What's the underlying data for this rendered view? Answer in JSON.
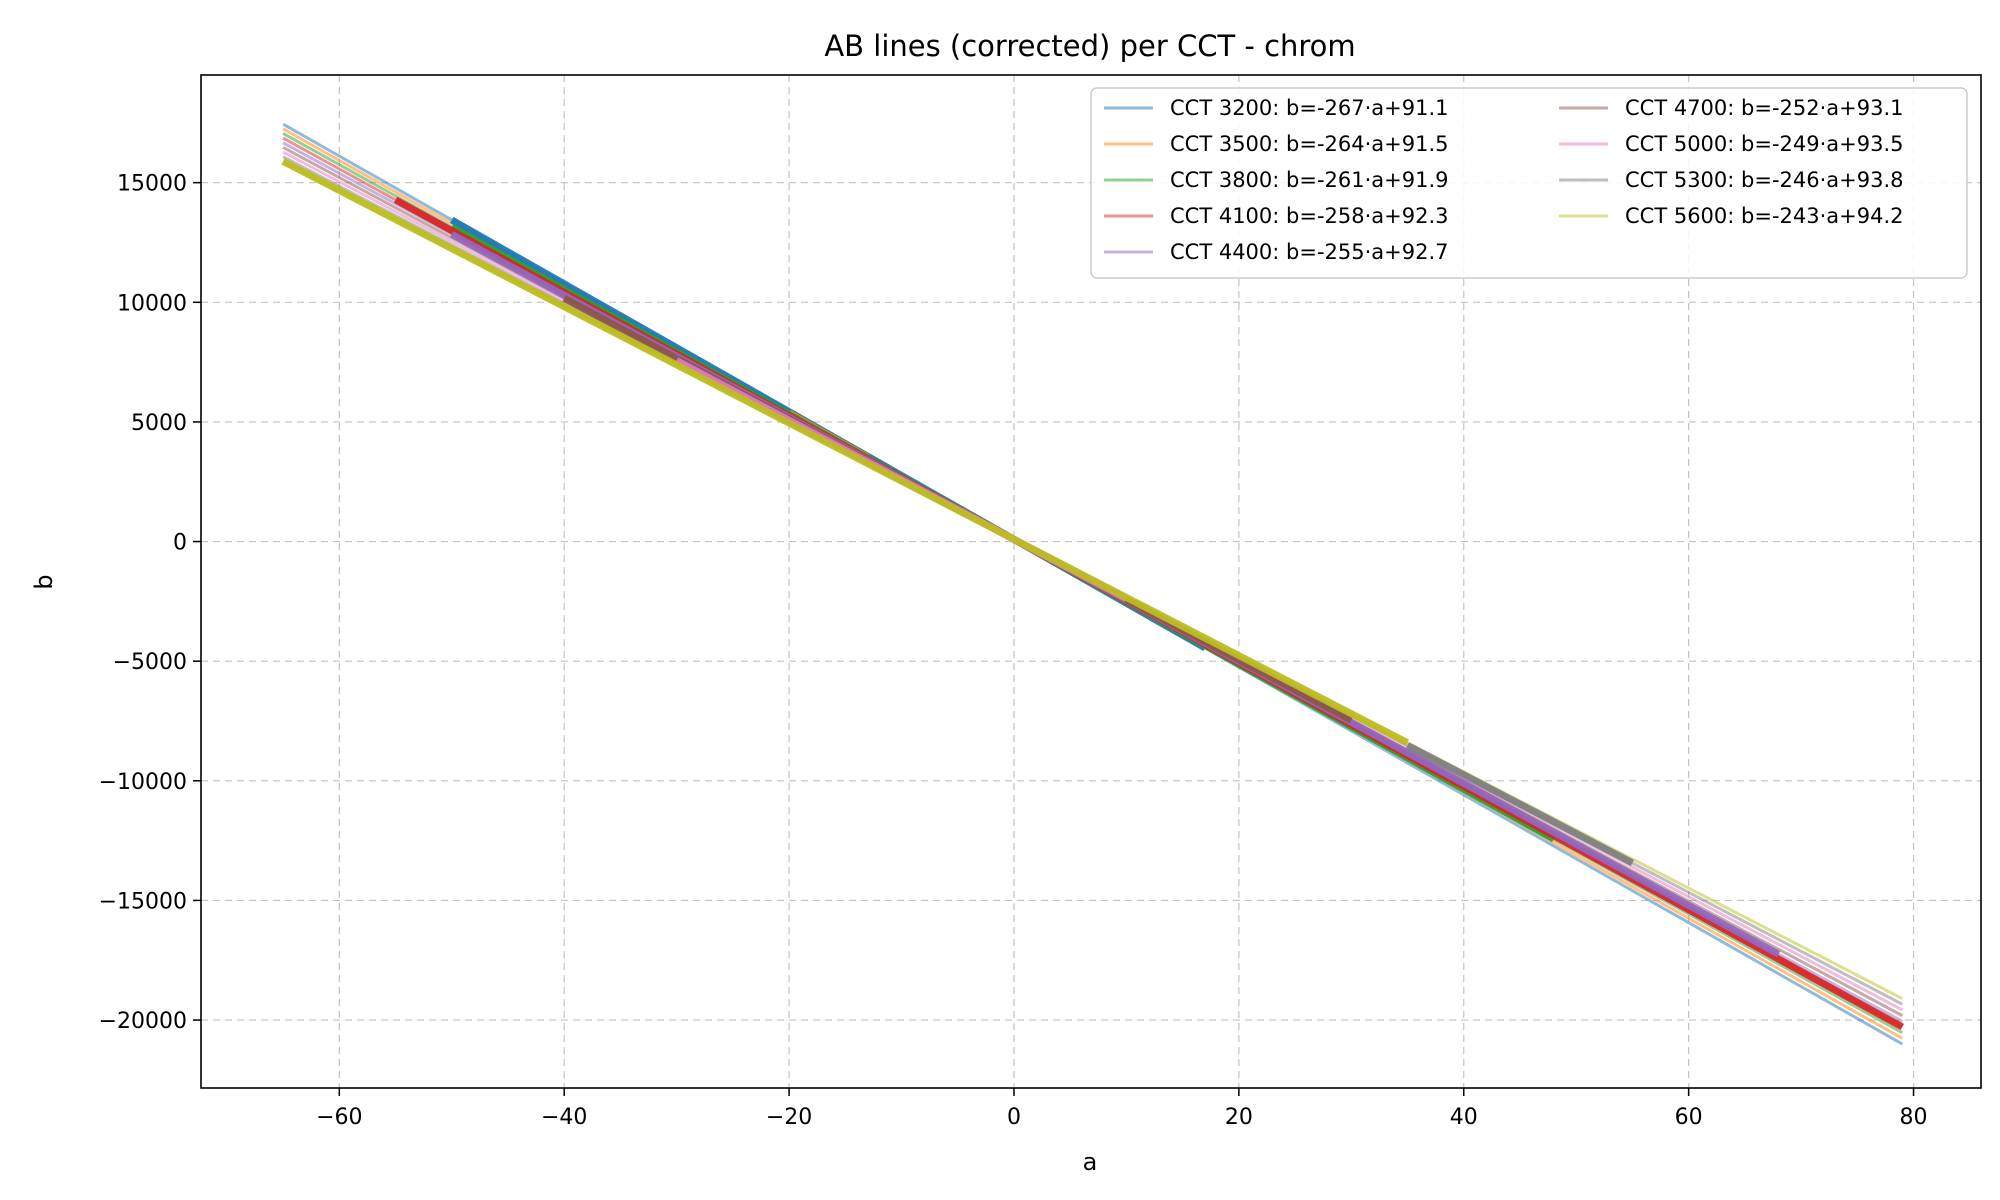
{
  "chart_data": {
    "type": "line",
    "title": "AB lines (corrected) per CCT - chrom",
    "xlabel": "a",
    "ylabel": "b",
    "xlim": [
      -72.3,
      86.0
    ],
    "ylim": [
      -22840,
      19500
    ],
    "xticks": [
      -60,
      -40,
      -20,
      0,
      20,
      40,
      60,
      80
    ],
    "yticks": [
      -20000,
      -15000,
      -10000,
      -5000,
      0,
      5000,
      10000,
      15000
    ],
    "xtick_labels": [
      "−60",
      "−40",
      "−20",
      "0",
      "20",
      "40",
      "60",
      "80"
    ],
    "ytick_labels": [
      "−20000",
      "−15000",
      "−10000",
      "−5000",
      "0",
      "5000",
      "10000",
      "15000"
    ],
    "grid": true,
    "legend_position": "top-right",
    "series": [
      {
        "name": "CCT 3200: b=-267·a+91.1",
        "color": "#1f77b4",
        "slope": -267,
        "intercept": 91.1,
        "x_range": [
          -65,
          79
        ],
        "x_data": [
          -50,
          17
        ]
      },
      {
        "name": "CCT 3500: b=-264·a+91.5",
        "color": "#ff7f0e",
        "slope": -264,
        "intercept": 91.5,
        "x_range": [
          -65,
          79
        ],
        "x_data": [
          -20,
          -13
        ]
      },
      {
        "name": "CCT 3800: b=-261·a+91.9",
        "color": "#2ca02c",
        "slope": -261,
        "intercept": 91.9,
        "x_range": [
          -65,
          79
        ],
        "x_data": [
          -50,
          48
        ]
      },
      {
        "name": "CCT 4100: b=-258·a+92.3",
        "color": "#d62728",
        "slope": -258,
        "intercept": 92.3,
        "x_range": [
          -65,
          79
        ],
        "x_data": [
          -55,
          79
        ]
      },
      {
        "name": "CCT 4400: b=-255·a+92.7",
        "color": "#9467bd",
        "slope": -255,
        "intercept": 92.7,
        "x_range": [
          -65,
          79
        ],
        "x_data": [
          -50,
          68
        ]
      },
      {
        "name": "CCT 4700: b=-252·a+93.1",
        "color": "#8c564b",
        "slope": -252,
        "intercept": 93.1,
        "x_range": [
          -65,
          79
        ],
        "x_data": [
          -40,
          30
        ]
      },
      {
        "name": "CCT 5000: b=-249·a+93.5",
        "color": "#e377c2",
        "slope": -249,
        "intercept": 93.5,
        "x_range": [
          -65,
          79
        ],
        "x_data": [
          -30,
          10
        ]
      },
      {
        "name": "CCT 5300: b=-246·a+93.8",
        "color": "#7f7f7f",
        "slope": -246,
        "intercept": 93.8,
        "x_range": [
          -65,
          79
        ],
        "x_data": [
          35,
          55
        ]
      },
      {
        "name": "CCT 5600: b=-243·a+94.2",
        "color": "#bcbd22",
        "slope": -243,
        "intercept": 94.2,
        "x_range": [
          -65,
          79
        ],
        "x_data": [
          -65,
          35
        ]
      }
    ]
  }
}
